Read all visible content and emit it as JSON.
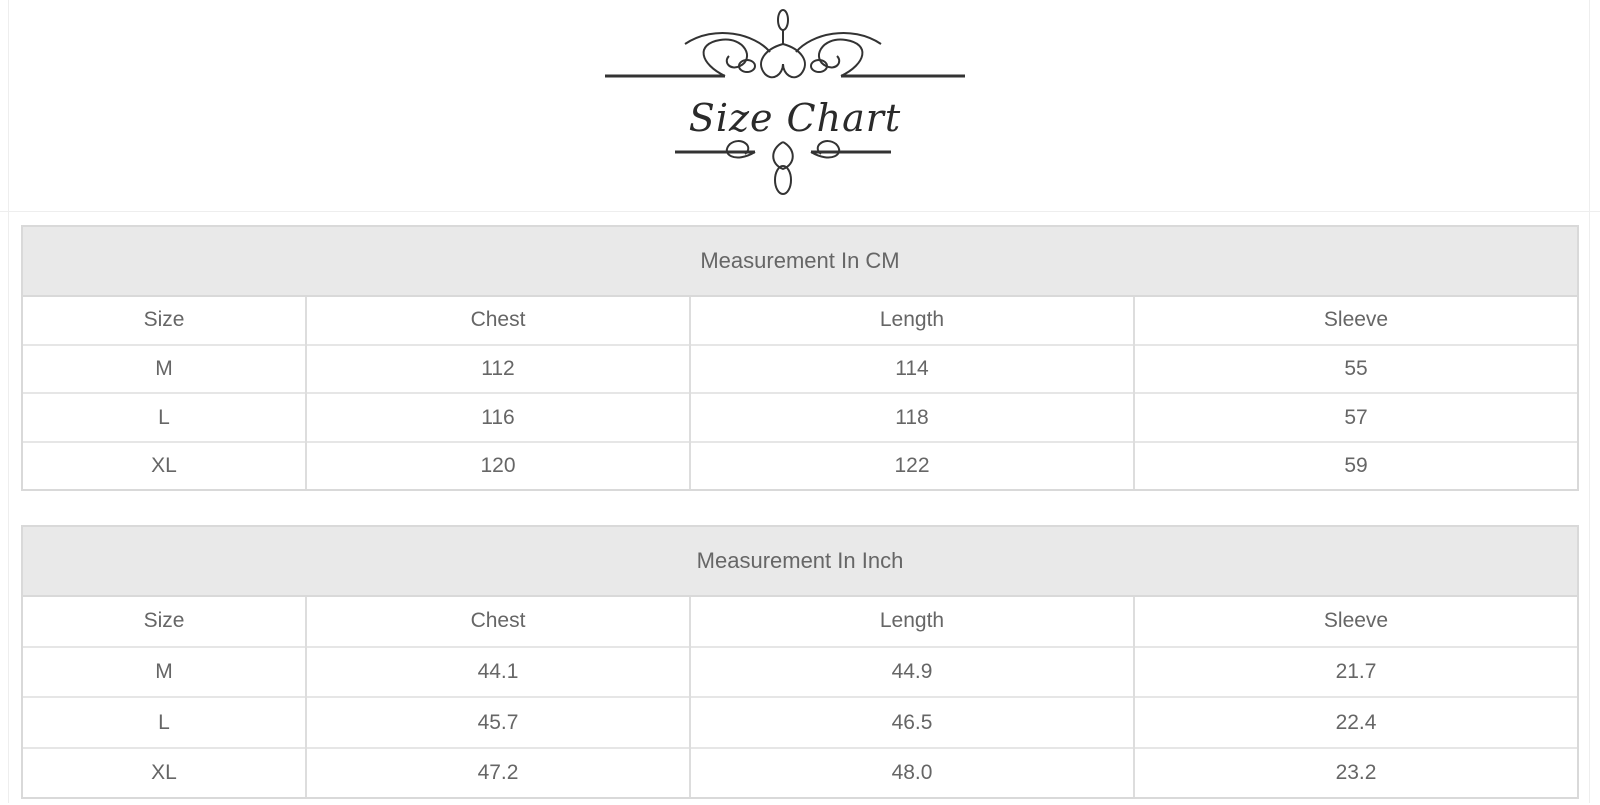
{
  "logo": {
    "text": "Size Chart"
  },
  "tables": [
    {
      "title": "Measurement In CM",
      "columns": [
        "Size",
        "Chest",
        "Length",
        "Sleeve"
      ],
      "rows": [
        [
          "M",
          "112",
          "114",
          "55"
        ],
        [
          "L",
          "116",
          "118",
          "57"
        ],
        [
          "XL",
          "120",
          "122",
          "59"
        ]
      ]
    },
    {
      "title": "Measurement In Inch",
      "columns": [
        "Size",
        "Chest",
        "Length",
        "Sleeve"
      ],
      "rows": [
        [
          "M",
          "44.1",
          "44.9",
          "21.7"
        ],
        [
          "L",
          "45.7",
          "46.5",
          "22.4"
        ],
        [
          "XL",
          "47.2",
          "48.0",
          "23.2"
        ]
      ]
    }
  ],
  "colors": {
    "header_bg": "#e9e9e9",
    "border": "#d9d9d9",
    "text": "#666666"
  }
}
